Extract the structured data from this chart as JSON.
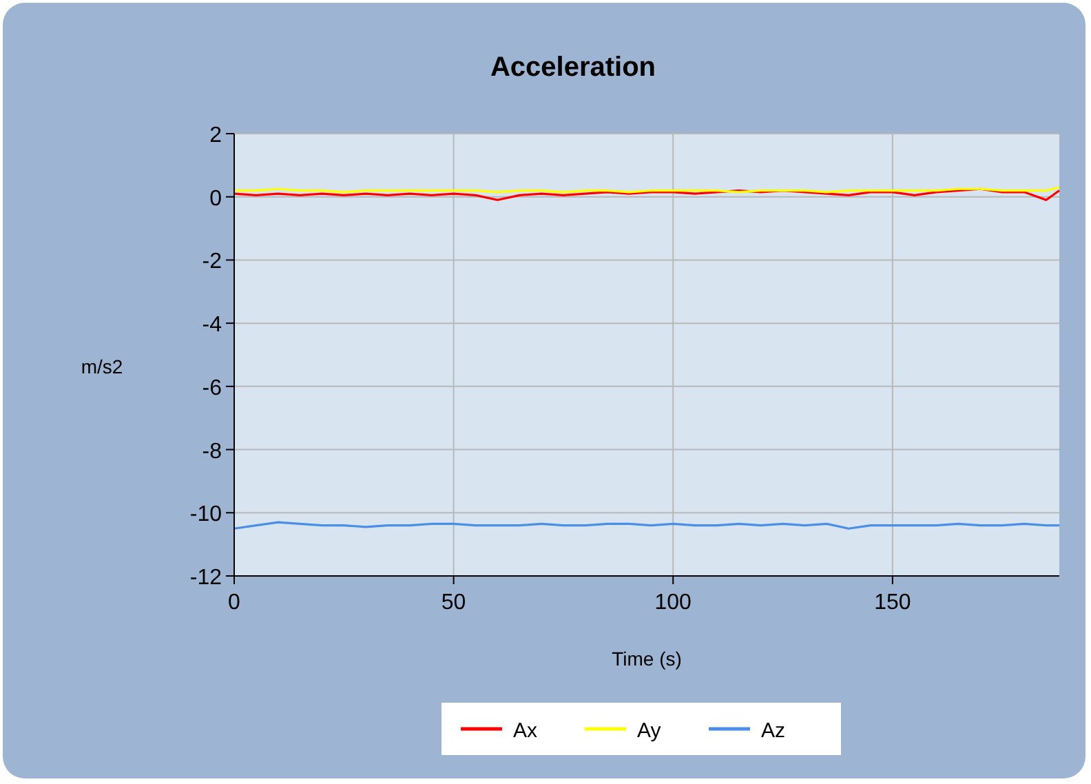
{
  "chart_data": {
    "type": "line",
    "title": "Acceleration",
    "xlabel": "Time (s)",
    "ylabel": "m/s2",
    "x": [
      0,
      5,
      10,
      15,
      20,
      25,
      30,
      35,
      40,
      45,
      50,
      55,
      60,
      65,
      70,
      75,
      80,
      85,
      90,
      95,
      100,
      105,
      110,
      115,
      120,
      125,
      130,
      135,
      140,
      145,
      150,
      155,
      160,
      165,
      170,
      175,
      180,
      185,
      188
    ],
    "series": [
      {
        "name": "Ax",
        "color": "#ff0000",
        "values": [
          0.1,
          0.05,
          0.1,
          0.05,
          0.1,
          0.05,
          0.1,
          0.05,
          0.1,
          0.05,
          0.1,
          0.05,
          -0.1,
          0.05,
          0.1,
          0.05,
          0.1,
          0.15,
          0.1,
          0.15,
          0.15,
          0.1,
          0.15,
          0.2,
          0.15,
          0.2,
          0.15,
          0.1,
          0.05,
          0.15,
          0.15,
          0.05,
          0.15,
          0.2,
          0.25,
          0.15,
          0.15,
          -0.1,
          0.2
        ]
      },
      {
        "name": "Ay",
        "color": "#ffff00",
        "values": [
          0.2,
          0.2,
          0.25,
          0.2,
          0.2,
          0.15,
          0.2,
          0.2,
          0.2,
          0.2,
          0.2,
          0.2,
          0.15,
          0.2,
          0.2,
          0.15,
          0.2,
          0.2,
          0.15,
          0.2,
          0.2,
          0.2,
          0.2,
          0.15,
          0.2,
          0.2,
          0.2,
          0.15,
          0.2,
          0.2,
          0.2,
          0.2,
          0.2,
          0.25,
          0.25,
          0.2,
          0.2,
          0.2,
          0.3
        ]
      },
      {
        "name": "Az",
        "color": "#4a8ee8",
        "values": [
          -10.5,
          -10.4,
          -10.3,
          -10.35,
          -10.4,
          -10.4,
          -10.45,
          -10.4,
          -10.4,
          -10.35,
          -10.35,
          -10.4,
          -10.4,
          -10.4,
          -10.35,
          -10.4,
          -10.4,
          -10.35,
          -10.35,
          -10.4,
          -10.35,
          -10.4,
          -10.4,
          -10.35,
          -10.4,
          -10.35,
          -10.4,
          -10.35,
          -10.5,
          -10.4,
          -10.4,
          -10.4,
          -10.4,
          -10.35,
          -10.4,
          -10.4,
          -10.35,
          -10.4,
          -10.4
        ]
      }
    ],
    "xlim": [
      0,
      188
    ],
    "xticks": [
      0,
      50,
      100,
      150
    ],
    "ylim": [
      -12,
      2
    ],
    "yticks": [
      -12,
      -10,
      -8,
      -6,
      -4,
      -2,
      0,
      2
    ],
    "grid": true,
    "legend": "bottom",
    "line_style": "solid",
    "marker": "none"
  }
}
